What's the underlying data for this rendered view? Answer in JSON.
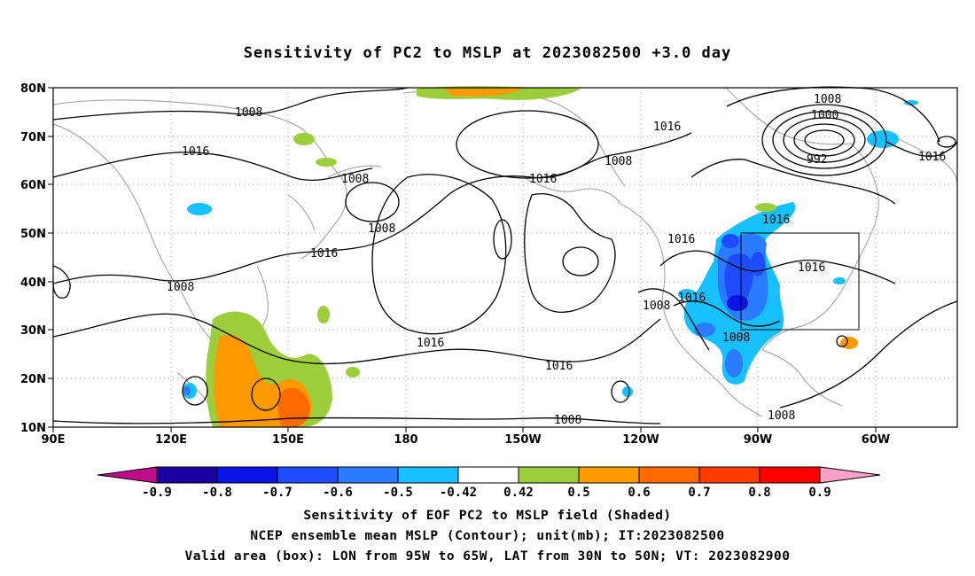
{
  "title": "Sensitivity of PC2 to MSLP at 2023082500 +3.0 day",
  "lat_labels": [
    "80N",
    "70N",
    "60N",
    "50N",
    "40N",
    "30N",
    "20N",
    "10N"
  ],
  "lon_labels": [
    "90E",
    "120E",
    "150E",
    "180",
    "150W",
    "120W",
    "90W",
    "60W"
  ],
  "contour_labels": [
    "1008",
    "1016",
    "1008",
    "1000",
    "992",
    "1016",
    "1016",
    "1008",
    "1016",
    "1008",
    "1016",
    "1016",
    "1008",
    "1016",
    "1016",
    "1008",
    "1008",
    "1016",
    "1016",
    "1008",
    "1008",
    "1016"
  ],
  "colorbar": {
    "labels": [
      "-0.9",
      "-0.8",
      "-0.7",
      "-0.6",
      "-0.5",
      "-0.42",
      "0.42",
      "0.5",
      "0.6",
      "0.7",
      "0.8",
      "0.9"
    ],
    "colors": [
      "#1a00a0",
      "#0a14e6",
      "#1d4cff",
      "#2a7bff",
      "#17c0ff",
      "#ffffff",
      "#9ccd3a",
      "#ff9900",
      "#ff6a00",
      "#ff3a00",
      "#ff0000",
      "#ffb0d0"
    ],
    "min_tip_color": "#c00a8c",
    "max_tip_color": "#ffa0c8"
  },
  "shading_colors": {
    "blue_light": "#17c0ff",
    "blue_mid": "#2a7bff",
    "blue_dark": "#0a14e6",
    "green": "#9ccd3a",
    "orange": "#ff9900",
    "orange_dark": "#ff6a00"
  },
  "captions": {
    "line1": "Sensitivity of EOF PC2 to MSLP field (Shaded)",
    "line2": "NCEP ensemble mean MSLP (Contour); unit(mb); IT:2023082500",
    "line3": "Valid area (box): LON from 95W to 65W, LAT from 30N to 50N; VT: 2023082900"
  }
}
